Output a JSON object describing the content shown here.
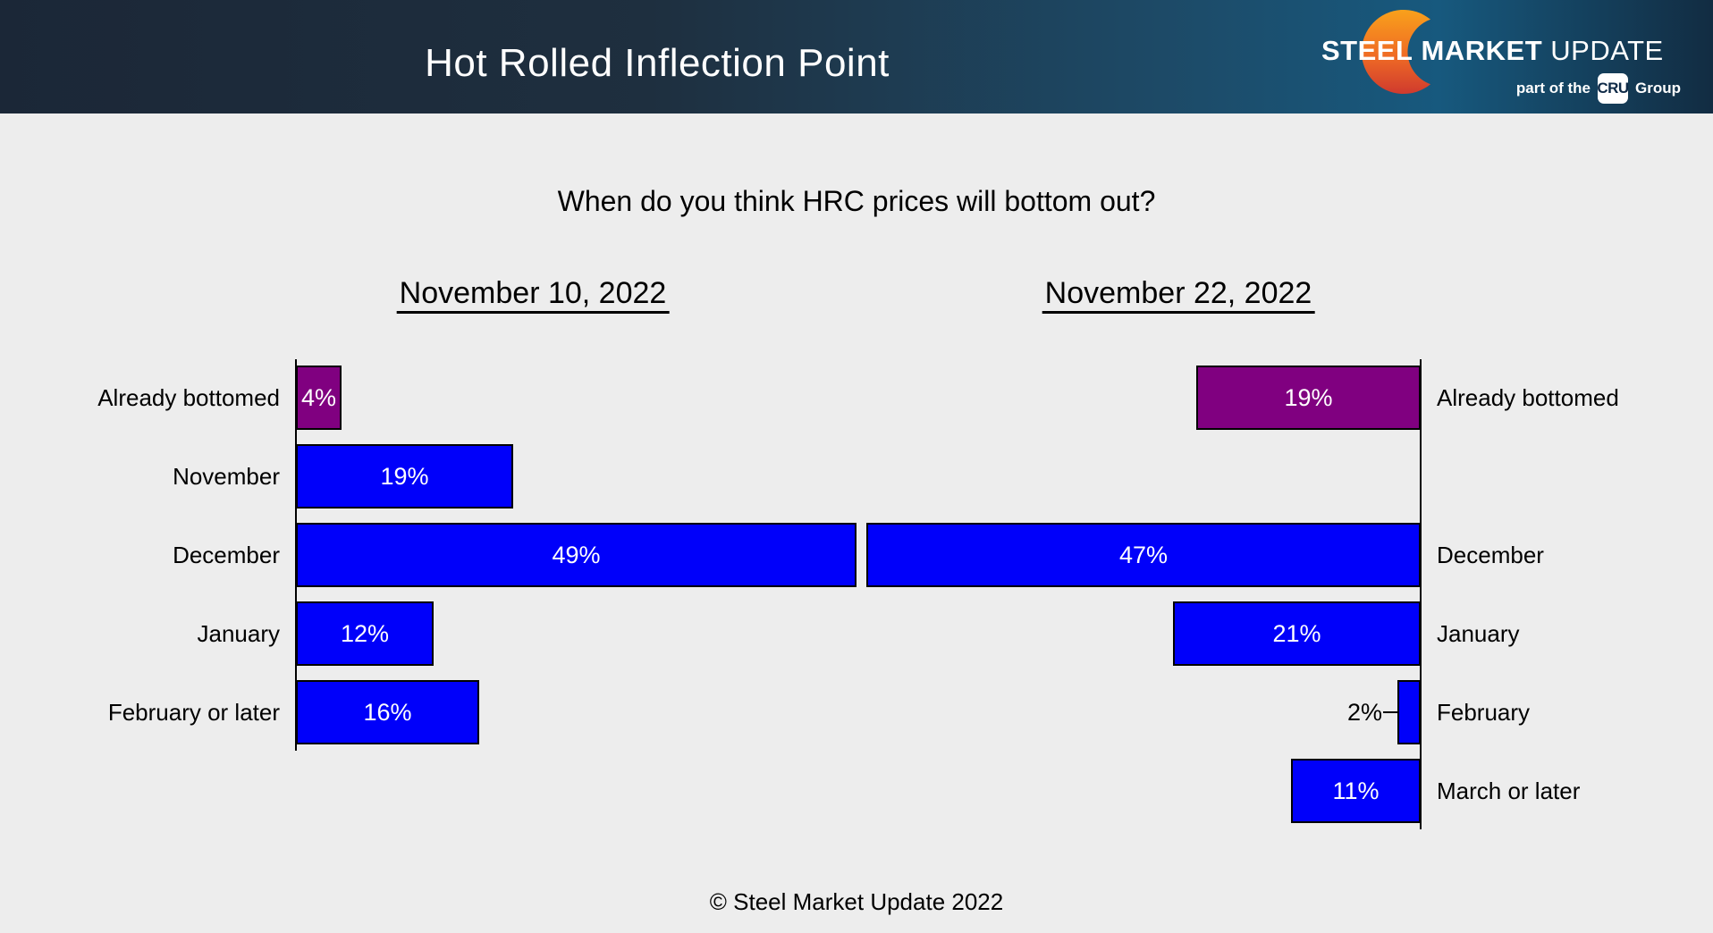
{
  "header": {
    "title": "Hot Rolled Inflection Point",
    "logo": {
      "word1": "STEEL",
      "word2": "MARKET",
      "word3": "UPDATE",
      "tagline_prefix": "part of the",
      "tagline_box": "CRU",
      "tagline_suffix": "Group",
      "crescent_top_color": "#f9a11b",
      "crescent_mid_color": "#ef6b25",
      "crescent_bottom_color": "#cf3a2e"
    }
  },
  "question": "When do you think HRC prices will bottom out?",
  "footer": "© Steel Market Update 2022",
  "colors": {
    "page_background": "#ededed",
    "header_gradient_left": "#1b2737",
    "header_gradient_right": "#17597e",
    "bar_blue": "#0000fa",
    "bar_purple": "#800080",
    "bar_border": "#000000",
    "axis": "#000000",
    "text": "#000000",
    "bar_value_text": "#ffffff"
  },
  "chart_data": [
    {
      "type": "bar",
      "orientation": "horizontal-right",
      "title": "November 10, 2022",
      "categories": [
        "Already bottomed",
        "November",
        "December",
        "January",
        "February or later"
      ],
      "values": [
        4,
        19,
        49,
        12,
        16
      ],
      "value_suffix": "%",
      "bar_colors": [
        "#800080",
        "#0000fa",
        "#0000fa",
        "#0000fa",
        "#0000fa"
      ],
      "row_slots": [
        0,
        1,
        2,
        3,
        4
      ],
      "value_label_outside": [
        false,
        false,
        false,
        false,
        false
      ],
      "labels_position": "left-of-axis",
      "xlim": [
        0,
        51
      ],
      "grid": false,
      "legend": "none"
    },
    {
      "type": "bar",
      "orientation": "horizontal-left",
      "title": "November 22, 2022",
      "categories": [
        "Already bottomed",
        "December",
        "January",
        "February",
        "March or later"
      ],
      "values": [
        19,
        47,
        21,
        2,
        11
      ],
      "value_suffix": "%",
      "bar_colors": [
        "#800080",
        "#0000fa",
        "#0000fa",
        "#0000fa",
        "#0000fa"
      ],
      "row_slots": [
        0,
        2,
        3,
        4,
        5
      ],
      "value_label_outside": [
        false,
        false,
        false,
        true,
        false
      ],
      "labels_position": "right-of-axis",
      "xlim": [
        0,
        48
      ],
      "grid": false,
      "legend": "none"
    }
  ]
}
